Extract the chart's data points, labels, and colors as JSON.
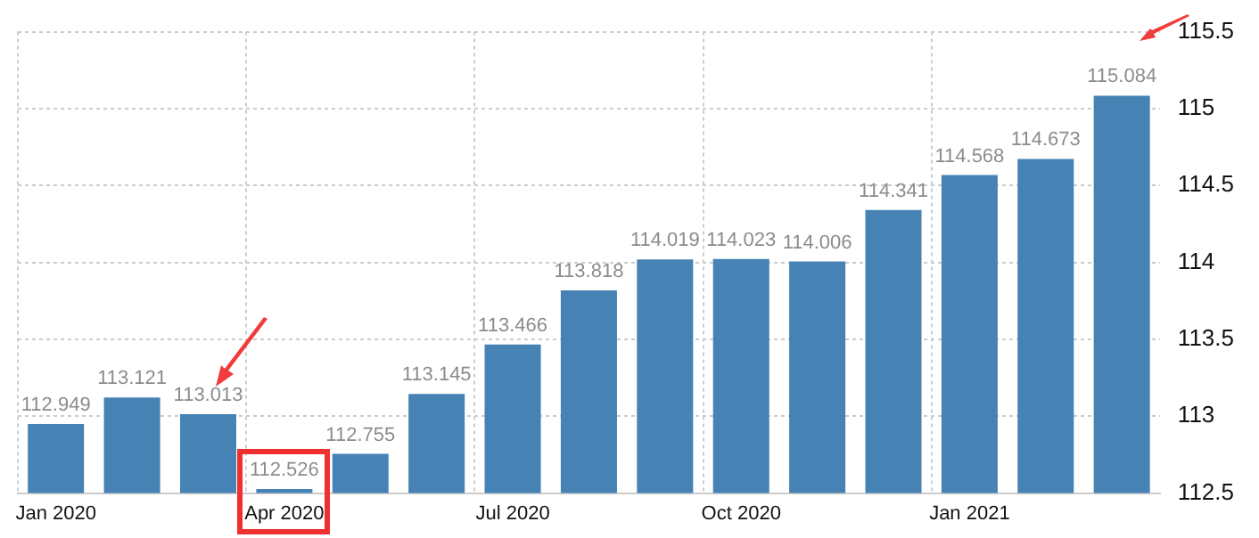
{
  "chart_data": {
    "type": "bar",
    "categories": [
      "Jan 2020",
      null,
      null,
      "Apr 2020",
      null,
      null,
      "Jul 2020",
      null,
      null,
      "Oct 2020",
      null,
      null,
      "Jan 2021",
      null,
      null
    ],
    "series": [
      {
        "color": "#4682b4",
        "values": [
          112.949,
          113.121,
          113.013,
          112.526,
          112.755,
          113.145,
          113.466,
          113.818,
          114.019,
          114.023,
          114.006,
          114.341,
          114.568,
          114.673,
          115.084
        ]
      }
    ],
    "ylim": [
      112.5,
      115.5
    ],
    "yticks": [
      112.5,
      113,
      113.5,
      114,
      114.5,
      115,
      115.5
    ],
    "grid": true,
    "legend": false,
    "data_labels": true
  }
}
